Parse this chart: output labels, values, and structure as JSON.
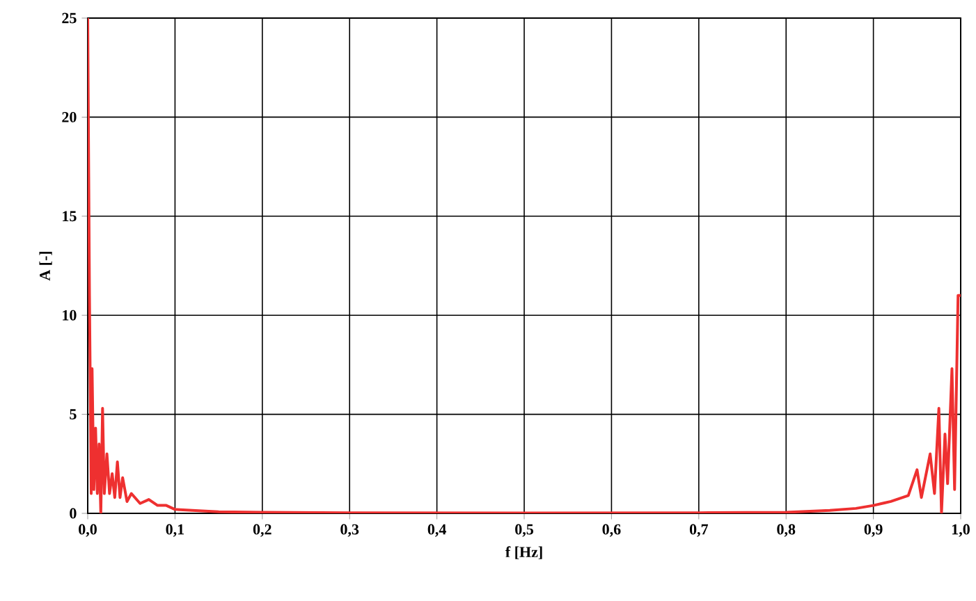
{
  "chart_data": {
    "type": "line",
    "xlabel": "f [Hz]",
    "ylabel": "A [-]",
    "xlim": [
      0,
      1
    ],
    "ylim": [
      0,
      25
    ],
    "xticks": [
      {
        "value": 0,
        "label": "0,0"
      },
      {
        "value": 0.1,
        "label": "0,1"
      },
      {
        "value": 0.2,
        "label": "0,2"
      },
      {
        "value": 0.3,
        "label": "0,3"
      },
      {
        "value": 0.4,
        "label": "0,4"
      },
      {
        "value": 0.5,
        "label": "0,5"
      },
      {
        "value": 0.6,
        "label": "0,6"
      },
      {
        "value": 0.7,
        "label": "0,7"
      },
      {
        "value": 0.8,
        "label": "0,8"
      },
      {
        "value": 0.9,
        "label": "0,9"
      },
      {
        "value": 1,
        "label": "1,0"
      }
    ],
    "yticks": [
      0,
      5,
      10,
      15,
      20,
      25
    ],
    "grid": true,
    "marker": "none",
    "line_style": "solid",
    "series": [
      {
        "color": "#ee3030",
        "x": [
          0,
          0.002,
          0.004,
          0.005,
          0.007,
          0.009,
          0.011,
          0.013,
          0.015,
          0.017,
          0.019,
          0.022,
          0.025,
          0.028,
          0.031,
          0.034,
          0.037,
          0.04,
          0.045,
          0.05,
          0.06,
          0.07,
          0.08,
          0.09,
          0.1,
          0.12,
          0.15,
          0.2,
          0.3,
          0.5,
          0.7,
          0.8,
          0.85,
          0.88,
          0.9,
          0.92,
          0.94,
          0.95,
          0.955,
          0.965,
          0.97,
          0.975,
          0.978,
          0.982,
          0.985,
          0.99,
          0.993,
          0.997,
          1.0
        ],
        "values": [
          25,
          11,
          1.0,
          7.3,
          1.2,
          4.3,
          1.0,
          3.5,
          0.0,
          5.3,
          1.0,
          3.0,
          1.0,
          2.0,
          0.8,
          2.6,
          0.8,
          1.8,
          0.6,
          1.0,
          0.5,
          0.7,
          0.4,
          0.4,
          0.2,
          0.15,
          0.08,
          0.05,
          0.03,
          0.02,
          0.03,
          0.05,
          0.15,
          0.25,
          0.4,
          0.6,
          0.9,
          2.2,
          0.8,
          3.0,
          1.0,
          5.3,
          0.0,
          4.0,
          1.5,
          7.3,
          1.2,
          11,
          11
        ]
      }
    ]
  }
}
